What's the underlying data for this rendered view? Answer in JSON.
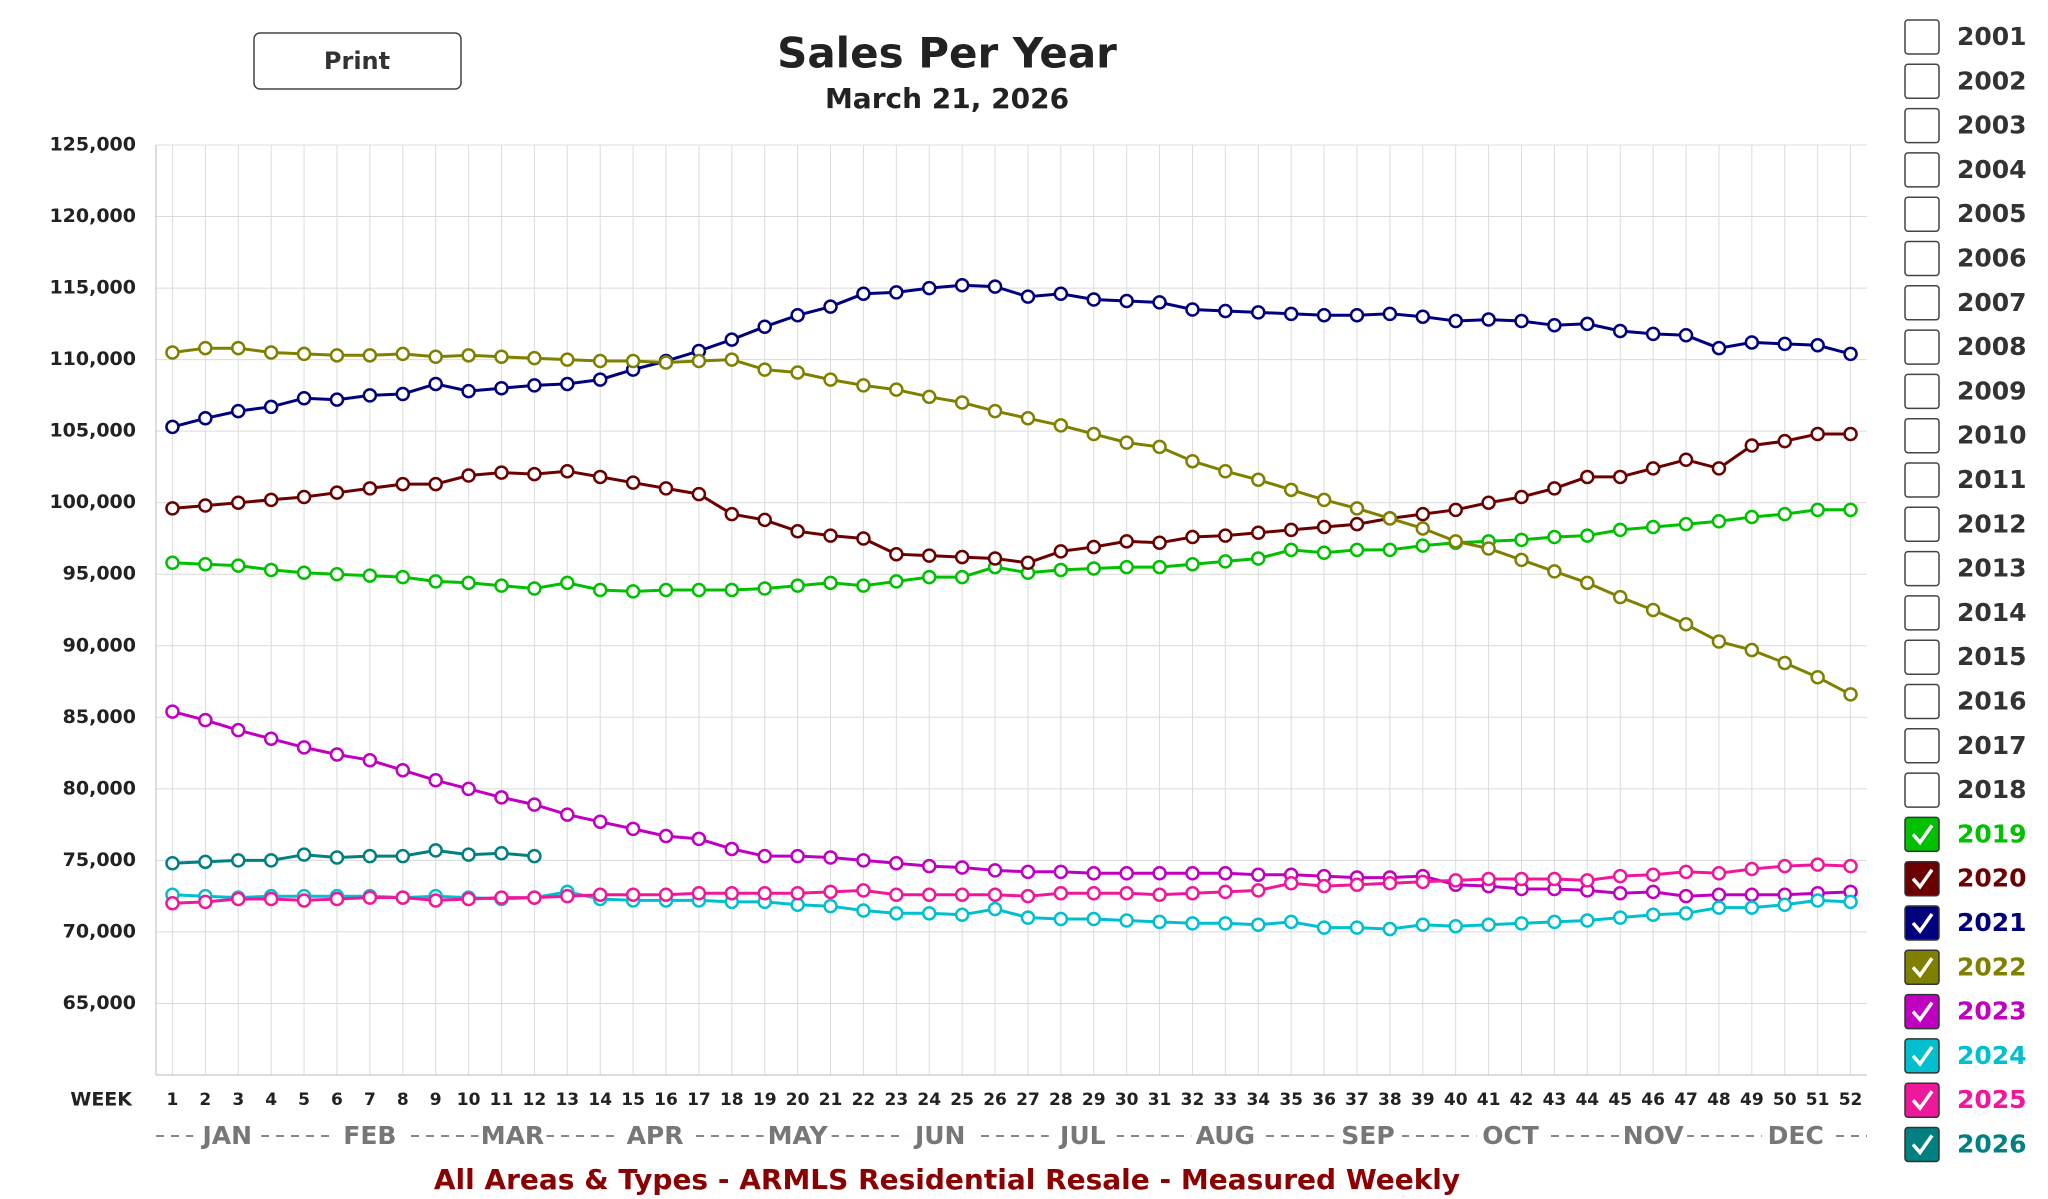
{
  "print_button": "Print",
  "chart_data": {
    "type": "line",
    "title": "Sales Per Year",
    "subtitle": "March 21, 2026",
    "x_label": "WEEK",
    "footer": "All Areas & Types - ARMLS Residential Resale - Measured Weekly",
    "categories": [
      "1",
      "2",
      "3",
      "4",
      "5",
      "6",
      "7",
      "8",
      "9",
      "10",
      "11",
      "12",
      "13",
      "14",
      "15",
      "16",
      "17",
      "18",
      "19",
      "20",
      "21",
      "22",
      "23",
      "24",
      "25",
      "26",
      "27",
      "28",
      "29",
      "30",
      "31",
      "32",
      "33",
      "34",
      "35",
      "36",
      "37",
      "38",
      "39",
      "40",
      "41",
      "42",
      "43",
      "44",
      "45",
      "46",
      "47",
      "48",
      "49",
      "50",
      "51",
      "52"
    ],
    "months": [
      "JAN",
      "FEB",
      "MAR",
      "APR",
      "MAY",
      "JUN",
      "JUL",
      "AUG",
      "SEP",
      "OCT",
      "NOV",
      "DEC"
    ],
    "ylim": [
      60000,
      125000
    ],
    "yticks": [
      {
        "value": 65000,
        "label": "65,000"
      },
      {
        "value": 70000,
        "label": "70,000"
      },
      {
        "value": 75000,
        "label": "75,000"
      },
      {
        "value": 80000,
        "label": "80,000"
      },
      {
        "value": 85000,
        "label": "85,000"
      },
      {
        "value": 90000,
        "label": "90,000"
      },
      {
        "value": 95000,
        "label": "95,000"
      },
      {
        "value": 100000,
        "label": "100,000"
      },
      {
        "value": 105000,
        "label": "105,000"
      },
      {
        "value": 110000,
        "label": "110,000"
      },
      {
        "value": 115000,
        "label": "115,000"
      },
      {
        "value": 120000,
        "label": "120,000"
      },
      {
        "value": 125000,
        "label": "125,000"
      }
    ],
    "grid": true,
    "unchecked_years": [
      "2001",
      "2002",
      "2003",
      "2004",
      "2005",
      "2006",
      "2007",
      "2008",
      "2009",
      "2010",
      "2011",
      "2012",
      "2013",
      "2014",
      "2015",
      "2016",
      "2017",
      "2018"
    ],
    "series": [
      {
        "name": "2019",
        "color": "#00c000",
        "values": [
          95800,
          95700,
          95600,
          95300,
          95100,
          95000,
          94900,
          94800,
          94500,
          94400,
          94200,
          94000,
          94400,
          93900,
          93800,
          93900,
          93900,
          93900,
          94000,
          94200,
          94400,
          94200,
          94500,
          94800,
          94800,
          95500,
          95100,
          95300,
          95400,
          95500,
          95500,
          95700,
          95900,
          96100,
          96700,
          96500,
          96700,
          96700,
          97000,
          97200,
          97300,
          97400,
          97600,
          97700,
          98100,
          98300,
          98500,
          98700,
          99000,
          99200,
          99500,
          99500
        ]
      },
      {
        "name": "2020",
        "color": "#6b0000",
        "values": [
          99600,
          99800,
          100000,
          100200,
          100400,
          100700,
          101000,
          101300,
          101300,
          101900,
          102100,
          102000,
          102200,
          101800,
          101400,
          101000,
          100600,
          99200,
          98800,
          98000,
          97700,
          97500,
          96400,
          96300,
          96200,
          96100,
          95800,
          96600,
          96900,
          97300,
          97200,
          97600,
          97700,
          97900,
          98100,
          98300,
          98500,
          98900,
          99200,
          99500,
          100000,
          100400,
          101000,
          101800,
          101800,
          102400,
          103000,
          102400,
          104000,
          104300,
          104800,
          104800
        ]
      },
      {
        "name": "2021",
        "color": "#00007f",
        "values": [
          105300,
          105900,
          106400,
          106700,
          107300,
          107200,
          107500,
          107600,
          108300,
          107800,
          108000,
          108200,
          108300,
          108600,
          109300,
          109900,
          110600,
          111400,
          112300,
          113100,
          113700,
          114600,
          114700,
          115000,
          115200,
          115100,
          114400,
          114600,
          114200,
          114100,
          114000,
          113500,
          113400,
          113300,
          113200,
          113100,
          113100,
          113200,
          113000,
          112700,
          112800,
          112700,
          112400,
          112500,
          112000,
          111800,
          111700,
          110800,
          111200,
          111100,
          111000,
          110400
        ]
      },
      {
        "name": "2022",
        "color": "#808000",
        "values": [
          110500,
          110800,
          110800,
          110500,
          110400,
          110300,
          110300,
          110400,
          110200,
          110300,
          110200,
          110100,
          110000,
          109900,
          109900,
          109800,
          109900,
          110000,
          109300,
          109100,
          108600,
          108200,
          107900,
          107400,
          107000,
          106400,
          105900,
          105400,
          104800,
          104200,
          103900,
          102900,
          102200,
          101600,
          100900,
          100200,
          99600,
          98900,
          98200,
          97300,
          96800,
          96000,
          95200,
          94400,
          93400,
          92500,
          91500,
          90300,
          89700,
          88800,
          87800,
          86600
        ]
      },
      {
        "name": "2023",
        "color": "#c000c0",
        "values": [
          85400,
          84800,
          84100,
          83500,
          82900,
          82400,
          82000,
          81300,
          80600,
          80000,
          79400,
          78900,
          78200,
          77700,
          77200,
          76700,
          76500,
          75800,
          75300,
          75300,
          75200,
          75000,
          74800,
          74600,
          74500,
          74300,
          74200,
          74200,
          74100,
          74100,
          74100,
          74100,
          74100,
          74000,
          74000,
          73900,
          73800,
          73800,
          73900,
          73300,
          73200,
          73000,
          73000,
          72900,
          72700,
          72800,
          72500,
          72600,
          72600,
          72600,
          72700,
          72800
        ]
      },
      {
        "name": "2024",
        "color": "#00c0d0",
        "values": [
          72600,
          72500,
          72400,
          72500,
          72500,
          72500,
          72500,
          72400,
          72500,
          72400,
          72300,
          72400,
          72800,
          72300,
          72200,
          72200,
          72200,
          72100,
          72100,
          71900,
          71800,
          71500,
          71300,
          71300,
          71200,
          71600,
          71000,
          70900,
          70900,
          70800,
          70700,
          70600,
          70600,
          70500,
          70700,
          70300,
          70300,
          70200,
          70500,
          70400,
          70500,
          70600,
          70700,
          70800,
          71000,
          71200,
          71300,
          71700,
          71700,
          71900,
          72200,
          72100
        ]
      },
      {
        "name": "2025",
        "color": "#f0189a",
        "values": [
          72000,
          72100,
          72300,
          72300,
          72200,
          72300,
          72400,
          72400,
          72200,
          72300,
          72400,
          72400,
          72500,
          72600,
          72600,
          72600,
          72700,
          72700,
          72700,
          72700,
          72800,
          72900,
          72600,
          72600,
          72600,
          72600,
          72500,
          72700,
          72700,
          72700,
          72600,
          72700,
          72800,
          72900,
          73400,
          73200,
          73300,
          73400,
          73500,
          73600,
          73700,
          73700,
          73700,
          73600,
          73900,
          74000,
          74200,
          74100,
          74400,
          74600,
          74700,
          74600
        ]
      },
      {
        "name": "2026",
        "color": "#008080",
        "values": [
          74800,
          74900,
          75000,
          75000,
          75400,
          75200,
          75300,
          75300,
          75700,
          75400,
          75500,
          75300,
          null,
          null,
          null,
          null,
          null,
          null,
          null,
          null,
          null,
          null,
          null,
          null,
          null,
          null,
          null,
          null,
          null,
          null,
          null,
          null,
          null,
          null,
          null,
          null,
          null,
          null,
          null,
          null,
          null,
          null,
          null,
          null,
          null,
          null,
          null,
          null,
          null,
          null,
          null,
          null
        ]
      }
    ]
  }
}
